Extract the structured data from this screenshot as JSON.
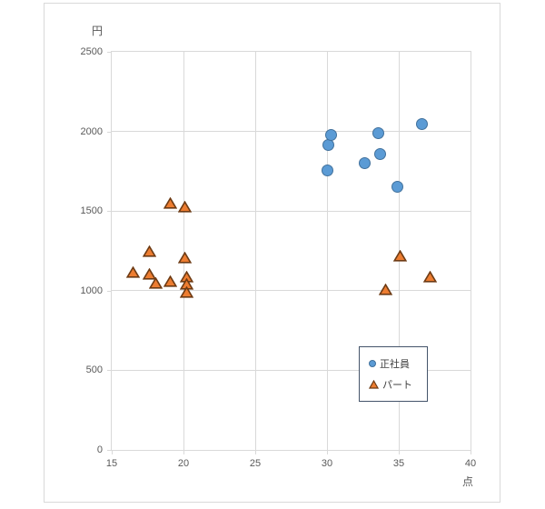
{
  "chart_data": {
    "type": "scatter",
    "title": "",
    "xlabel": "点",
    "ylabel": "円",
    "xlim": [
      15,
      40
    ],
    "ylim": [
      0,
      2500
    ],
    "x_ticks": [
      15,
      20,
      25,
      30,
      35,
      40
    ],
    "y_ticks": [
      0,
      500,
      1000,
      1500,
      2000,
      2500
    ],
    "grid": true,
    "legend_position": "inside-lower-right",
    "series": [
      {
        "name": "正社員",
        "marker": "circle",
        "fill": "#5B9BD5",
        "stroke": "#41719C",
        "points": [
          [
            30.0,
            1755
          ],
          [
            30.1,
            1915
          ],
          [
            30.3,
            1975
          ],
          [
            32.6,
            1800
          ],
          [
            33.6,
            1990
          ],
          [
            33.7,
            1860
          ],
          [
            34.9,
            1655
          ],
          [
            36.6,
            2045
          ]
        ]
      },
      {
        "name": "パート",
        "marker": "triangle",
        "fill": "#ED7D31",
        "stroke": "#6E3B14",
        "points": [
          [
            16.5,
            1115
          ],
          [
            17.6,
            1245
          ],
          [
            17.6,
            1105
          ],
          [
            18.1,
            1045
          ],
          [
            19.1,
            1550
          ],
          [
            19.1,
            1060
          ],
          [
            20.1,
            1525
          ],
          [
            20.1,
            1210
          ],
          [
            20.2,
            1090
          ],
          [
            20.2,
            1040
          ],
          [
            20.2,
            990
          ],
          [
            34.1,
            1010
          ],
          [
            35.1,
            1220
          ],
          [
            37.2,
            1085
          ]
        ]
      }
    ],
    "colors": {
      "grid": "#D9D9D9",
      "chart_border": "#D9D9D9",
      "axis_text": "#595959",
      "legend_border": "#44546A",
      "series1_fill": "#5B9BD5",
      "series1_stroke": "#41719C",
      "series2_fill": "#ED7D31",
      "series2_stroke": "#6E3B14"
    }
  }
}
